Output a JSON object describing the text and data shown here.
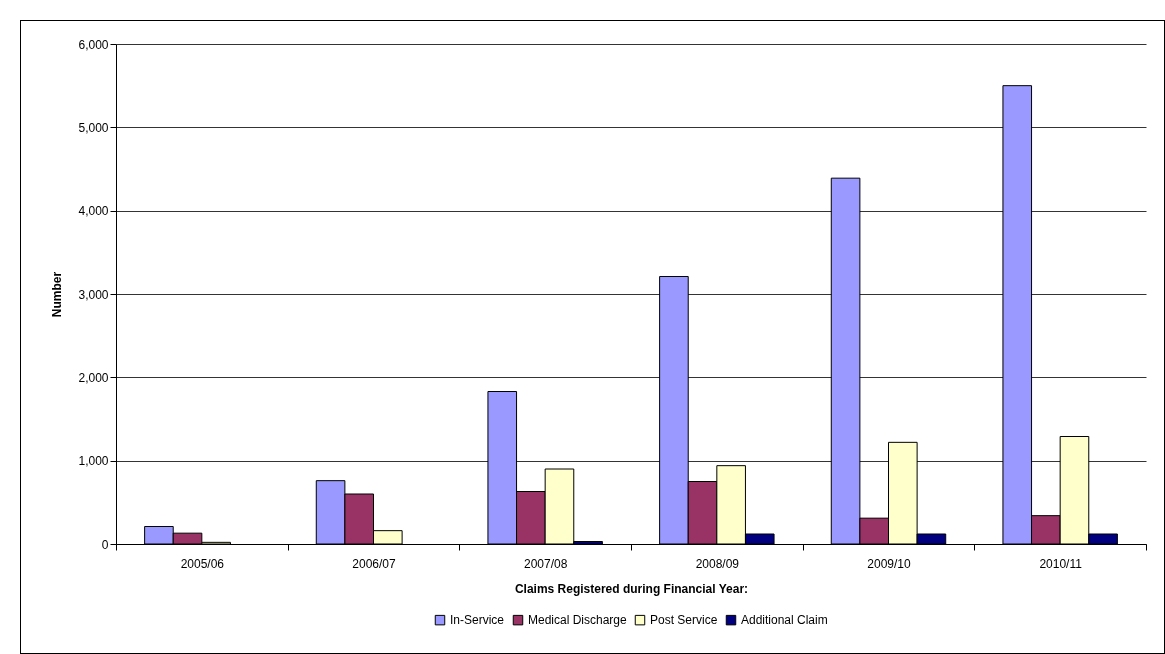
{
  "chart_data": {
    "type": "bar",
    "xlabel": "Claims Registered during Financial Year:",
    "ylabel": "Number",
    "categories": [
      "2005/06",
      "2006/07",
      "2007/08",
      "2008/09",
      "2009/10",
      "2010/11"
    ],
    "series": [
      {
        "name": "In-Service",
        "color": "#9999ff",
        "values": [
          210,
          760,
          1830,
          3210,
          4390,
          5500
        ]
      },
      {
        "name": "Medical Discharge",
        "color": "#993366",
        "values": [
          130,
          600,
          630,
          750,
          310,
          340
        ]
      },
      {
        "name": "Post Service",
        "color": "#ffffcc",
        "values": [
          20,
          160,
          900,
          940,
          1220,
          1290
        ]
      },
      {
        "name": "Additional Claim",
        "color": "#000080",
        "values": [
          null,
          null,
          30,
          120,
          120,
          120
        ]
      }
    ],
    "ylim": [
      0,
      6000
    ],
    "yticks": [
      {
        "value": 0,
        "label": "0"
      },
      {
        "value": 1000,
        "label": "1,000"
      },
      {
        "value": 2000,
        "label": "2,000"
      },
      {
        "value": 3000,
        "label": "3,000"
      },
      {
        "value": 4000,
        "label": "4,000"
      },
      {
        "value": 5000,
        "label": "5,000"
      },
      {
        "value": 6000,
        "label": "6,000"
      }
    ],
    "grid": "y",
    "legend": "bottom"
  }
}
